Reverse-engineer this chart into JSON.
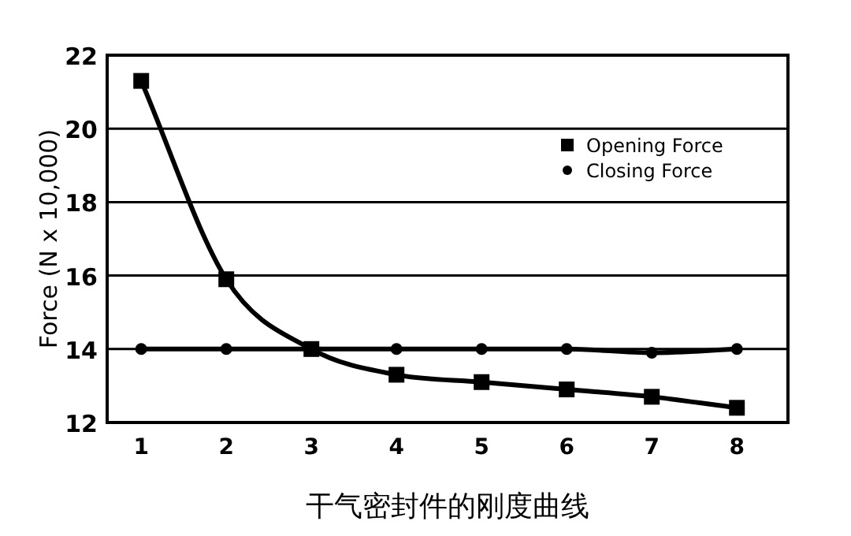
{
  "chart_data": {
    "type": "line",
    "xlabel": "干气密封件的刚度曲线",
    "ylabel": "Force (N x 10,000)",
    "x": [
      1,
      2,
      3,
      4,
      5,
      6,
      7,
      8
    ],
    "xlim": [
      0.6,
      8.6
    ],
    "xticks": [
      1,
      2,
      3,
      4,
      5,
      6,
      7,
      8
    ],
    "ylim": [
      12,
      22
    ],
    "yticks": [
      12,
      14,
      16,
      18,
      20,
      22
    ],
    "grid": "y",
    "legend": "top right",
    "series": [
      {
        "name": "Opening Force",
        "color": "#000000",
        "marker": "square",
        "values": [
          21.3,
          15.9,
          14.0,
          13.3,
          13.1,
          12.9,
          12.7,
          12.4
        ]
      },
      {
        "name": "Closing Force",
        "color": "#000000",
        "marker": "circle",
        "values": [
          14,
          14,
          14,
          14,
          14,
          14,
          13.9,
          14
        ]
      }
    ]
  }
}
